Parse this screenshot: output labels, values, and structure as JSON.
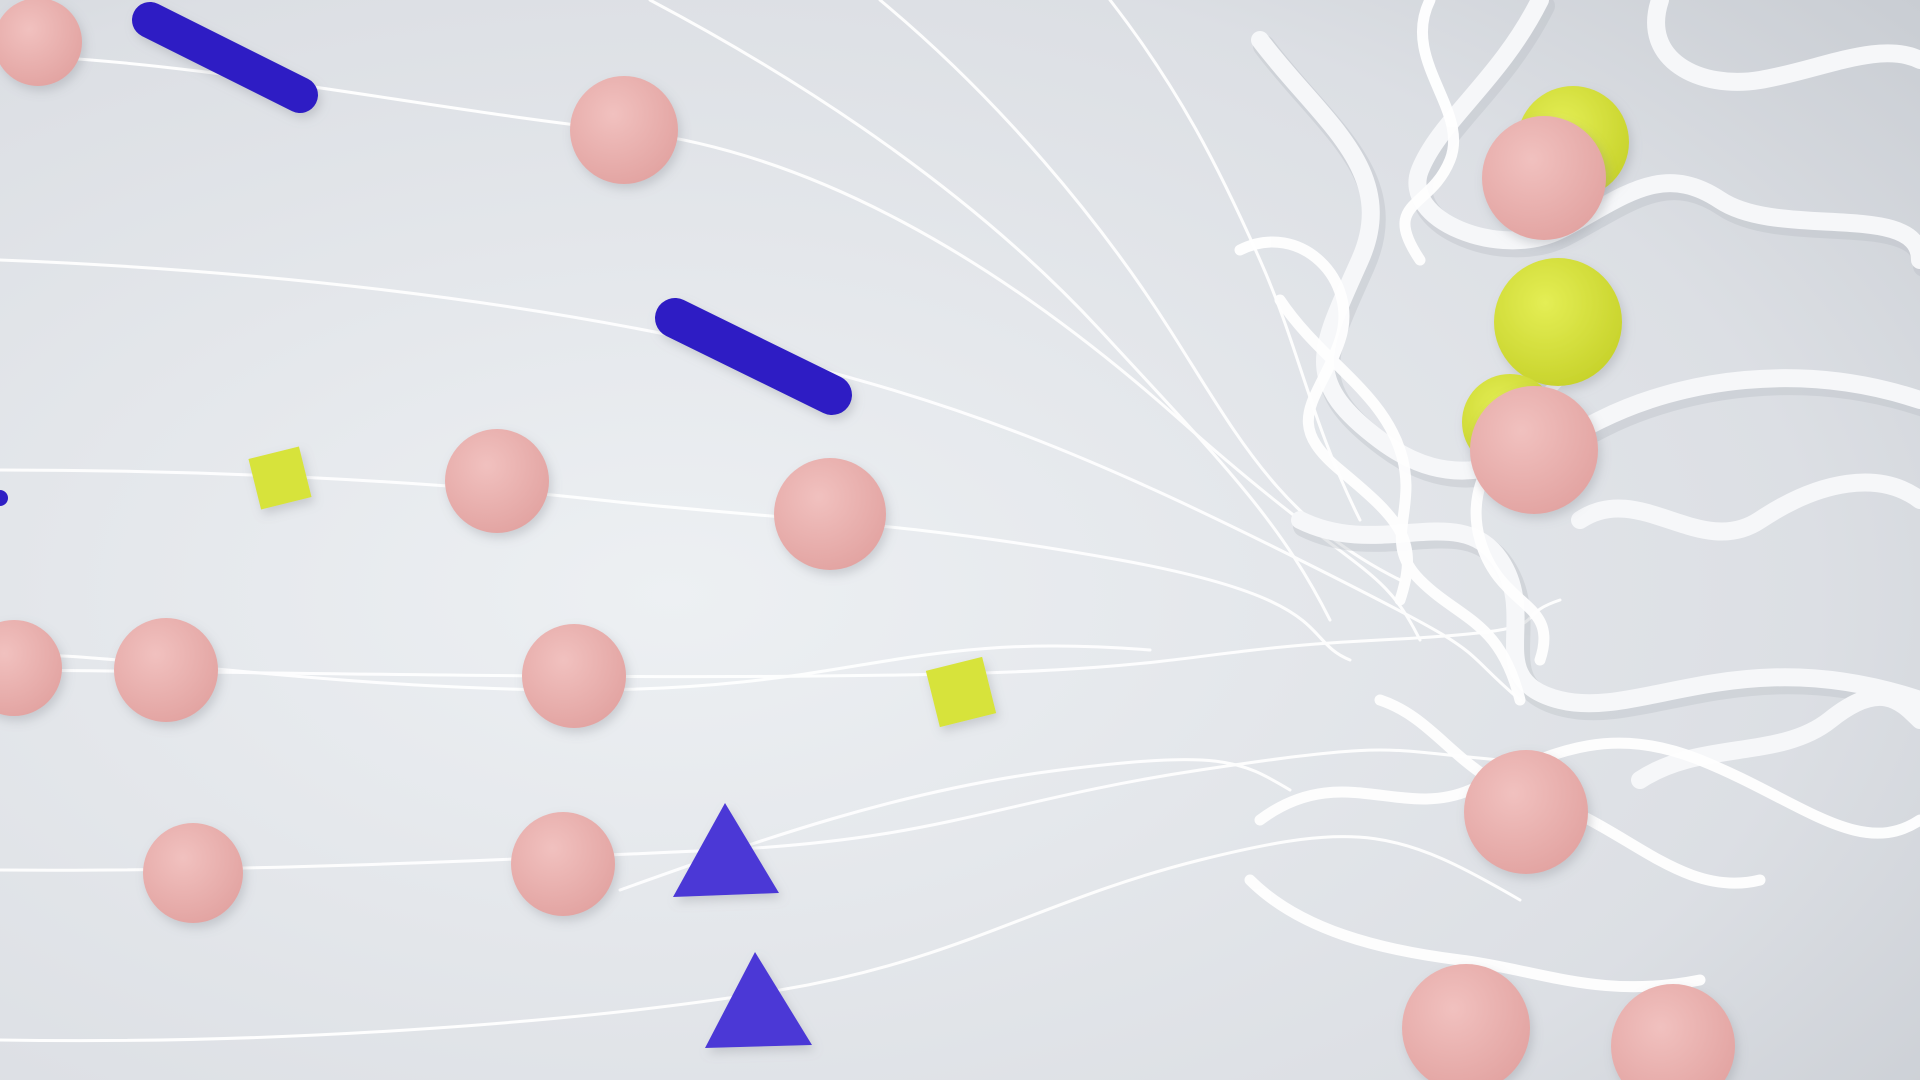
{
  "scene": {
    "description_colors": {
      "background_light": "#eef0f3",
      "background_dark": "#c8ccd2",
      "thread": "#ffffff",
      "tube": "#f4f5f7",
      "tube_shadow": "#b9bdc4",
      "dot_pink": "#eab0ae",
      "dot_pink_shade": "#d99896",
      "dot_yellow": "#d7e33a",
      "capsule_blue": "#2f1fc4",
      "triangle_blue": "#4b38d6"
    },
    "element_kinds": [
      "pink-dot",
      "yellow-dot",
      "yellow-square",
      "blue-capsule",
      "blue-triangle",
      "thread",
      "tube"
    ]
  }
}
